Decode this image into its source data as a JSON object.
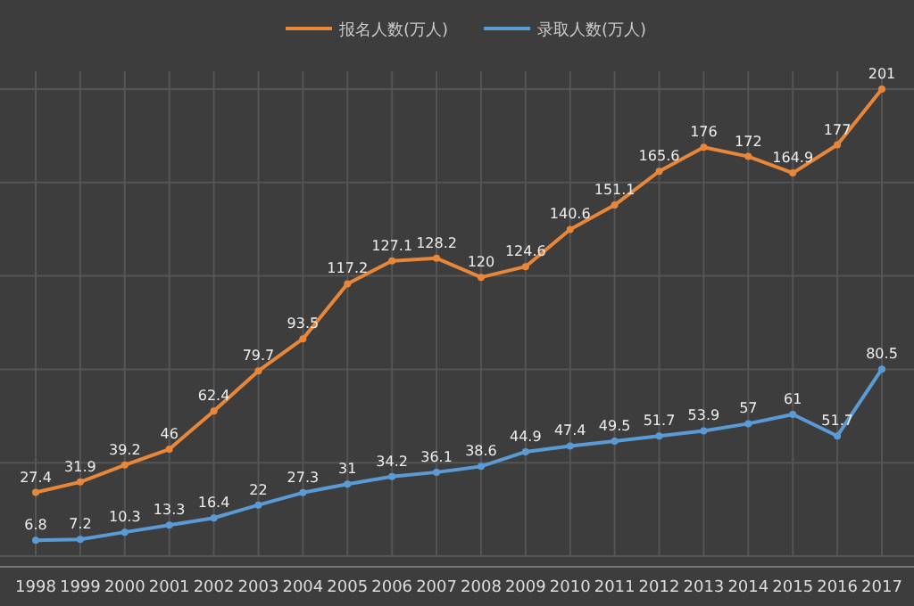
{
  "chart_data": {
    "type": "line",
    "categories": [
      "1998",
      "1999",
      "2000",
      "2001",
      "2002",
      "2003",
      "2004",
      "2005",
      "2006",
      "2007",
      "2008",
      "2009",
      "2010",
      "2011",
      "2012",
      "2013",
      "2014",
      "2015",
      "2016",
      "2017"
    ],
    "series": [
      {
        "name": "报名人数(万人)",
        "color": "#e8873a",
        "values": [
          27.4,
          31.9,
          39.2,
          46,
          62.4,
          79.7,
          93.5,
          117.2,
          127.1,
          128.2,
          120,
          124.6,
          140.6,
          151.1,
          165.6,
          176,
          172,
          164.9,
          177,
          201
        ]
      },
      {
        "name": "录取人数(万人)",
        "color": "#5b9bd5",
        "values": [
          6.8,
          7.2,
          10.3,
          13.3,
          16.4,
          22,
          27.3,
          31,
          34.2,
          36.1,
          38.6,
          44.9,
          47.4,
          49.5,
          51.7,
          53.9,
          57,
          61,
          51.7,
          80.5
        ]
      }
    ],
    "data_labels": true,
    "grid": true,
    "legend": "top",
    "marker": "circle",
    "line_style": "solid"
  }
}
